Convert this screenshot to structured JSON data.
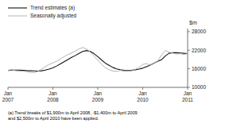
{
  "chart_data": {
    "type": "line",
    "ylabel": "$m",
    "footnote": "(a) Trend breaks of $1,900m to April 2008, -$1,400m to April 2009\nand $2,500m to April 2010 have been applied.",
    "categories": [
      "Jan 2007",
      null,
      null,
      null,
      null,
      null,
      null,
      null,
      null,
      null,
      null,
      null,
      "Jan 2008",
      null,
      null,
      null,
      null,
      null,
      null,
      null,
      null,
      null,
      null,
      null,
      "Jan 2009",
      null,
      null,
      null,
      null,
      null,
      null,
      null,
      null,
      null,
      null,
      null,
      "Jan 2010",
      null,
      null,
      null,
      null,
      null,
      null,
      null,
      null,
      null,
      null,
      null,
      "Jan 2011"
    ],
    "series": [
      {
        "name": "Trend estimates (a)",
        "color": "#111111",
        "values": [
          15500,
          15550,
          15600,
          15580,
          15500,
          15420,
          15370,
          15320,
          15250,
          15350,
          15600,
          15900,
          16300,
          16900,
          17600,
          18300,
          19000,
          19700,
          20300,
          21000,
          21600,
          21900,
          21600,
          20900,
          19900,
          18850,
          17850,
          17150,
          16450,
          15980,
          15700,
          15500,
          15450,
          15480,
          15680,
          15900,
          16200,
          16700,
          17200,
          17800,
          18400,
          18900,
          20100,
          21000,
          21200,
          21200,
          21100,
          21000,
          20900
        ]
      },
      {
        "name": "Seasonally adjusted",
        "color": "#aaaaaa",
        "values": [
          15500,
          15650,
          15400,
          15200,
          15250,
          15050,
          14850,
          14750,
          15150,
          15900,
          16700,
          17400,
          17900,
          18450,
          19200,
          19900,
          20600,
          21100,
          21750,
          22400,
          22900,
          22400,
          21400,
          20100,
          18750,
          17450,
          16400,
          15750,
          15250,
          15200,
          15450,
          15250,
          15150,
          15350,
          15750,
          16450,
          17400,
          17700,
          17100,
          17700,
          18400,
          20400,
          21900,
          21400,
          21100,
          20750,
          20900,
          20650,
          20900
        ]
      }
    ],
    "ylim": [
      10000,
      29000
    ],
    "yticks": [
      10000,
      16000,
      22000,
      28000
    ],
    "grid": false,
    "legend": "upper left"
  }
}
